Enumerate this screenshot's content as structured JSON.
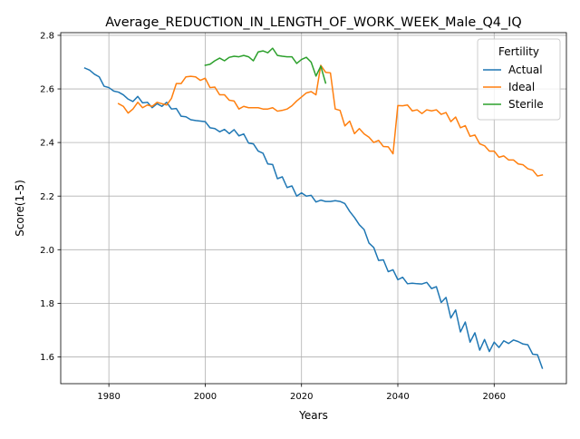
{
  "chart_data": {
    "type": "line",
    "title": "Average_REDUCTION_IN_LENGTH_OF_WORK_WEEK_Male_Q4_IQ",
    "xlabel": "Years",
    "ylabel": "Score(1-5)",
    "xlim": [
      1970,
      2075
    ],
    "ylim": [
      1.5,
      2.81
    ],
    "xticks": [
      1980,
      2000,
      2020,
      2040,
      2060
    ],
    "yticks": [
      1.6,
      1.8,
      2.0,
      2.2,
      2.4,
      2.6,
      2.8
    ],
    "xtick_labels": [
      "1980",
      "2000",
      "2020",
      "2040",
      "2060"
    ],
    "ytick_labels": [
      "1.6",
      "1.8",
      "2.0",
      "2.2",
      "2.4",
      "2.6",
      "2.8"
    ],
    "grid": true,
    "legend": {
      "title": "Fertility",
      "placement": "top-right"
    },
    "series": [
      {
        "name": "Actual",
        "color": "#1f77b4",
        "x": [
          1975,
          1976,
          1977,
          1978,
          1979,
          1980,
          1981,
          1982,
          1983,
          1984,
          1985,
          1986,
          1987,
          1988,
          1989,
          1990,
          1991,
          1992,
          1993,
          1994,
          1995,
          1996,
          1997,
          1998,
          1999,
          2000,
          2001,
          2002,
          2003,
          2004,
          2005,
          2006,
          2007,
          2008,
          2009,
          2010,
          2011,
          2012,
          2013,
          2014,
          2015,
          2016,
          2017,
          2018,
          2019,
          2020,
          2021,
          2022,
          2023,
          2024,
          2025,
          2026,
          2027,
          2028,
          2029,
          2030,
          2031,
          2032,
          2033,
          2034,
          2035,
          2036,
          2037,
          2038,
          2039,
          2040,
          2041,
          2042,
          2043,
          2044,
          2045,
          2046,
          2047,
          2048,
          2049,
          2050,
          2051,
          2052,
          2053,
          2054,
          2055,
          2056,
          2057,
          2058,
          2059,
          2060,
          2061,
          2062,
          2063,
          2064,
          2065,
          2066,
          2067,
          2068,
          2069,
          2070
        ],
        "y": [
          2.678,
          2.67,
          2.655,
          2.645,
          2.61,
          2.605,
          2.592,
          2.588,
          2.578,
          2.562,
          2.553,
          2.572,
          2.548,
          2.55,
          2.53,
          2.545,
          2.535,
          2.55,
          2.525,
          2.527,
          2.498,
          2.496,
          2.485,
          2.482,
          2.48,
          2.478,
          2.455,
          2.452,
          2.44,
          2.449,
          2.433,
          2.448,
          2.425,
          2.432,
          2.398,
          2.395,
          2.368,
          2.36,
          2.32,
          2.318,
          2.265,
          2.272,
          2.232,
          2.238,
          2.2,
          2.212,
          2.2,
          2.203,
          2.178,
          2.185,
          2.18,
          2.18,
          2.183,
          2.18,
          2.172,
          2.143,
          2.12,
          2.093,
          2.075,
          2.025,
          2.008,
          1.96,
          1.962,
          1.918,
          1.925,
          1.888,
          1.897,
          1.873,
          1.875,
          1.873,
          1.872,
          1.878,
          1.855,
          1.862,
          1.803,
          1.822,
          1.745,
          1.775,
          1.693,
          1.73,
          1.655,
          1.69,
          1.625,
          1.665,
          1.62,
          1.655,
          1.635,
          1.66,
          1.65,
          1.663,
          1.657,
          1.648,
          1.645,
          1.61,
          1.608,
          1.558
        ]
      },
      {
        "name": "Ideal",
        "color": "#ff7f0e",
        "x": [
          1982,
          1983,
          1984,
          1985,
          1986,
          1987,
          1988,
          1989,
          1990,
          1991,
          1992,
          1993,
          1994,
          1995,
          1996,
          1997,
          1998,
          1999,
          2000,
          2001,
          2002,
          2003,
          2004,
          2005,
          2006,
          2007,
          2008,
          2009,
          2010,
          2011,
          2012,
          2013,
          2014,
          2015,
          2016,
          2017,
          2018,
          2019,
          2020,
          2021,
          2022,
          2023,
          2024,
          2025,
          2026,
          2027,
          2028,
          2029,
          2030,
          2031,
          2032,
          2033,
          2034,
          2035,
          2036,
          2037,
          2038,
          2039,
          2040,
          2041,
          2042,
          2043,
          2044,
          2045,
          2046,
          2047,
          2048,
          2049,
          2050,
          2051,
          2052,
          2053,
          2054,
          2055,
          2056,
          2057,
          2058,
          2059,
          2060,
          2061,
          2062,
          2063,
          2064,
          2065,
          2066,
          2067,
          2068,
          2069,
          2070
        ],
        "y": [
          2.545,
          2.535,
          2.51,
          2.525,
          2.55,
          2.53,
          2.54,
          2.535,
          2.55,
          2.545,
          2.54,
          2.565,
          2.62,
          2.62,
          2.645,
          2.647,
          2.645,
          2.632,
          2.64,
          2.605,
          2.607,
          2.578,
          2.578,
          2.558,
          2.555,
          2.525,
          2.535,
          2.53,
          2.53,
          2.53,
          2.525,
          2.525,
          2.53,
          2.517,
          2.52,
          2.525,
          2.537,
          2.555,
          2.57,
          2.585,
          2.59,
          2.578,
          2.688,
          2.662,
          2.66,
          2.525,
          2.52,
          2.462,
          2.48,
          2.433,
          2.452,
          2.432,
          2.42,
          2.4,
          2.408,
          2.385,
          2.384,
          2.358,
          2.538,
          2.537,
          2.54,
          2.518,
          2.522,
          2.508,
          2.522,
          2.518,
          2.522,
          2.505,
          2.512,
          2.478,
          2.495,
          2.455,
          2.463,
          2.423,
          2.428,
          2.395,
          2.388,
          2.368,
          2.368,
          2.345,
          2.35,
          2.335,
          2.335,
          2.32,
          2.317,
          2.302,
          2.297,
          2.275,
          2.279
        ]
      },
      {
        "name": "Sterile",
        "color": "#2ca02c",
        "x": [
          2000,
          2001,
          2002,
          2003,
          2004,
          2005,
          2006,
          2007,
          2008,
          2009,
          2010,
          2011,
          2012,
          2013,
          2014,
          2015,
          2016,
          2017,
          2018,
          2019,
          2020,
          2021,
          2022,
          2023,
          2024,
          2025
        ],
        "y": [
          2.688,
          2.692,
          2.705,
          2.715,
          2.705,
          2.718,
          2.722,
          2.72,
          2.725,
          2.72,
          2.705,
          2.738,
          2.742,
          2.735,
          2.752,
          2.725,
          2.722,
          2.72,
          2.72,
          2.695,
          2.71,
          2.718,
          2.7,
          2.648,
          2.685,
          2.622
        ]
      }
    ]
  }
}
